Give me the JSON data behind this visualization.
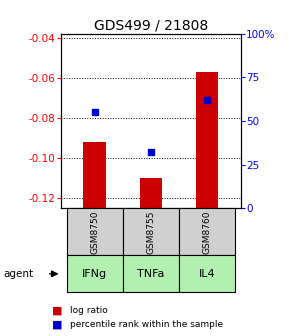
{
  "title": "GDS499 / 21808",
  "categories": [
    "GSM8750",
    "GSM8755",
    "GSM8760"
  ],
  "agents": [
    "IFNg",
    "TNFa",
    "IL4"
  ],
  "log_ratios": [
    -0.092,
    -0.11,
    -0.057
  ],
  "percentile_ranks": [
    55,
    32,
    62
  ],
  "ylim_left": [
    -0.125,
    -0.038
  ],
  "ylim_right": [
    0,
    100
  ],
  "yticks_left": [
    -0.12,
    -0.1,
    -0.08,
    -0.06,
    -0.04
  ],
  "ytick_labels_left": [
    "-0.12",
    "-0.10",
    "-0.08",
    "-0.06",
    "-0.04"
  ],
  "yticks_right": [
    0,
    25,
    50,
    75,
    100
  ],
  "ytick_labels_right": [
    "0",
    "25",
    "50",
    "75",
    "100%"
  ],
  "bar_color": "#cc0000",
  "marker_color": "#0000cc",
  "bg_color": "#ffffff",
  "agent_bg_color": "#b2f0b2",
  "gsm_bg_color": "#d0d0d0",
  "title_fontsize": 10,
  "axis_fontsize": 7.5,
  "bar_width": 0.4
}
